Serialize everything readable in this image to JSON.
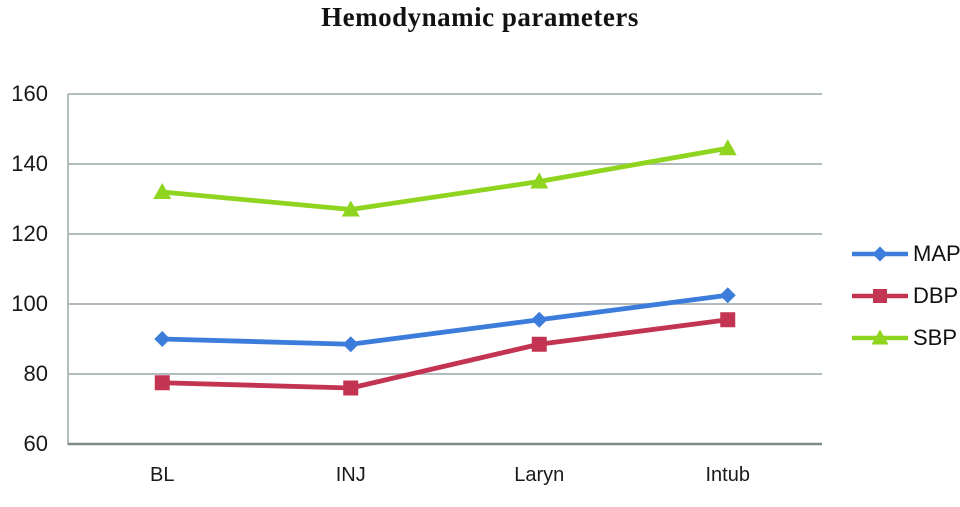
{
  "title": "Hemodynamic parameters",
  "chart_data": {
    "type": "line",
    "categories": [
      "BL",
      "INJ",
      "Laryn",
      "Intub"
    ],
    "series": [
      {
        "name": "MAP",
        "color": "#3c7ddb",
        "marker": "diamond",
        "values": [
          90,
          88.5,
          95.5,
          102.5
        ]
      },
      {
        "name": "DBP",
        "color": "#c23451",
        "marker": "square",
        "values": [
          77.5,
          76,
          88.5,
          95.5
        ]
      },
      {
        "name": "SBP",
        "color": "#8fd41f",
        "marker": "triangle",
        "values": [
          132,
          127,
          135,
          144.5
        ]
      }
    ],
    "ylim": [
      60,
      160
    ],
    "yticks": [
      60,
      80,
      100,
      120,
      140,
      160
    ],
    "xlabel": "",
    "ylabel": "",
    "grid": "horizontal",
    "legend_position": "right",
    "grid_color": "#a7b2b2",
    "axis_color": "#7e8b8b",
    "tick_text_color": "#1a1a1a"
  }
}
